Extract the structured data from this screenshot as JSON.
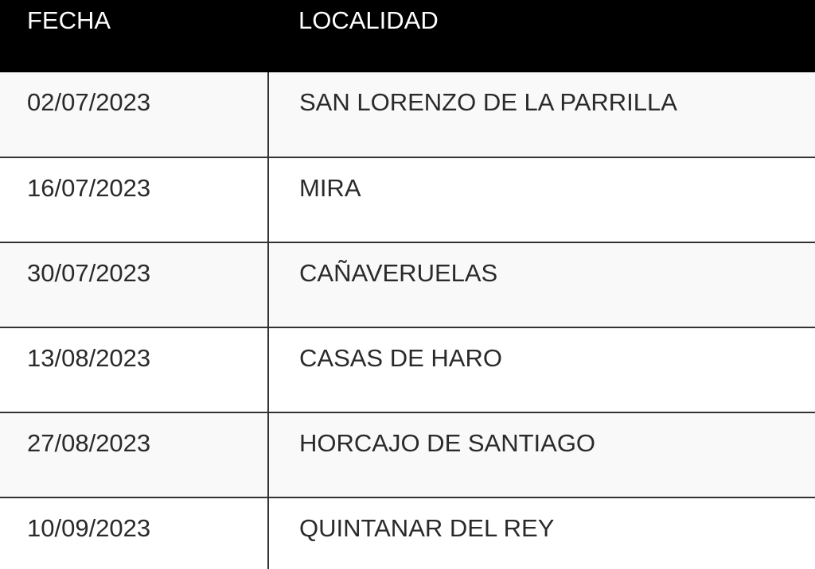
{
  "table": {
    "headers": [
      "FECHA",
      "LOCALIDAD"
    ],
    "rows": [
      {
        "fecha": "02/07/2023",
        "localidad": "SAN LORENZO DE LA PARRILLA"
      },
      {
        "fecha": "16/07/2023",
        "localidad": "MIRA"
      },
      {
        "fecha": "30/07/2023",
        "localidad": "CAÑAVERUELAS"
      },
      {
        "fecha": "13/08/2023",
        "localidad": "CASAS DE HARO"
      },
      {
        "fecha": "27/08/2023",
        "localidad": "HORCAJO DE SANTIAGO"
      },
      {
        "fecha": "10/09/2023",
        "localidad": "QUINTANAR DEL REY"
      }
    ]
  },
  "colors": {
    "header_bg": "#000000",
    "header_text": "#ffffff",
    "stripe": "#f9f9f9",
    "border": "#333333"
  }
}
